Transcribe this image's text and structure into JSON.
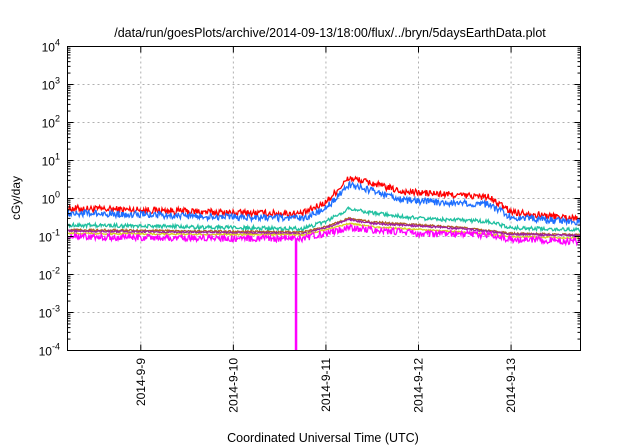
{
  "chart_data": {
    "type": "line",
    "title": "/data/run/goesPlots/archive/2014-09-13/18:00/flux/../bryn/5daysEarthData.plot",
    "xlabel": "Coordinated Universal Time (UTC)",
    "ylabel": "cGy/day",
    "yscale": "log",
    "ylim": [
      0.0001,
      10000
    ],
    "yticks": [
      {
        "value": 0.0001,
        "base": "10",
        "exp": "-4"
      },
      {
        "value": 0.001,
        "base": "10",
        "exp": "-3"
      },
      {
        "value": 0.01,
        "base": "10",
        "exp": "-2"
      },
      {
        "value": 0.1,
        "base": "10",
        "exp": "-1"
      },
      {
        "value": 1,
        "base": "10",
        "exp": "0"
      },
      {
        "value": 10,
        "base": "10",
        "exp": "1"
      },
      {
        "value": 100,
        "base": "10",
        "exp": "2"
      },
      {
        "value": 1000,
        "base": "10",
        "exp": "3"
      },
      {
        "value": 10000,
        "base": "10",
        "exp": "4"
      }
    ],
    "xlim": [
      "2014-09-08 05:00",
      "2014-09-13 18:00"
    ],
    "xticks": [
      {
        "value": "2014-09-09 00:00",
        "label": "2014-9-9"
      },
      {
        "value": "2014-09-10 00:00",
        "label": "2014-9-10"
      },
      {
        "value": "2014-09-11 00:00",
        "label": "2014-9-11"
      },
      {
        "value": "2014-09-12 00:00",
        "label": "2014-9-12"
      },
      {
        "value": "2014-09-13 00:00",
        "label": "2014-9-13"
      }
    ],
    "grid": true,
    "legend": "none",
    "series": [
      {
        "color": "#ff0000",
        "noise": 0.09,
        "points": [
          [
            "2014-09-08 05:00",
            0.55
          ],
          [
            "2014-09-09 00:00",
            0.5
          ],
          [
            "2014-09-10 00:00",
            0.42
          ],
          [
            "2014-09-10 18:00",
            0.4
          ],
          [
            "2014-09-11 00:00",
            0.8
          ],
          [
            "2014-09-11 06:00",
            3.5
          ],
          [
            "2014-09-11 12:00",
            2.5
          ],
          [
            "2014-09-11 20:00",
            1.5
          ],
          [
            "2014-09-12 06:00",
            1.3
          ],
          [
            "2014-09-12 18:00",
            1.1
          ],
          [
            "2014-09-13 00:00",
            0.45
          ],
          [
            "2014-09-13 12:00",
            0.33
          ],
          [
            "2014-09-13 18:00",
            0.3
          ]
        ]
      },
      {
        "color": "#1e6fff",
        "noise": 0.09,
        "points": [
          [
            "2014-09-08 05:00",
            0.42
          ],
          [
            "2014-09-09 00:00",
            0.38
          ],
          [
            "2014-09-10 00:00",
            0.32
          ],
          [
            "2014-09-10 18:00",
            0.3
          ],
          [
            "2014-09-11 00:00",
            0.55
          ],
          [
            "2014-09-11 06:00",
            2.3
          ],
          [
            "2014-09-11 12:00",
            1.6
          ],
          [
            "2014-09-11 20:00",
            0.9
          ],
          [
            "2014-09-12 06:00",
            0.8
          ],
          [
            "2014-09-12 18:00",
            0.7
          ],
          [
            "2014-09-13 00:00",
            0.33
          ],
          [
            "2014-09-13 12:00",
            0.26
          ],
          [
            "2014-09-13 18:00",
            0.24
          ]
        ]
      },
      {
        "color": "#20c0a0",
        "noise": 0.05,
        "points": [
          [
            "2014-09-08 05:00",
            0.2
          ],
          [
            "2014-09-09 00:00",
            0.19
          ],
          [
            "2014-09-10 00:00",
            0.17
          ],
          [
            "2014-09-10 18:00",
            0.16
          ],
          [
            "2014-09-11 00:00",
            0.25
          ],
          [
            "2014-09-11 06:00",
            0.55
          ],
          [
            "2014-09-11 12:00",
            0.42
          ],
          [
            "2014-09-12 00:00",
            0.3
          ],
          [
            "2014-09-12 18:00",
            0.25
          ],
          [
            "2014-09-13 00:00",
            0.17
          ],
          [
            "2014-09-13 18:00",
            0.15
          ]
        ]
      },
      {
        "color": "#b06020",
        "noise": 0.025,
        "points": [
          [
            "2014-09-08 05:00",
            0.15
          ],
          [
            "2014-09-10 18:00",
            0.13
          ],
          [
            "2014-09-11 00:00",
            0.18
          ],
          [
            "2014-09-11 06:00",
            0.3
          ],
          [
            "2014-09-11 12:00",
            0.24
          ],
          [
            "2014-09-12 12:00",
            0.17
          ],
          [
            "2014-09-13 00:00",
            0.12
          ],
          [
            "2014-09-13 18:00",
            0.11
          ]
        ]
      },
      {
        "color": "#a020a0",
        "noise": 0.025,
        "points": [
          [
            "2014-09-08 05:00",
            0.14
          ],
          [
            "2014-09-10 18:00",
            0.12
          ],
          [
            "2014-09-11 00:00",
            0.17
          ],
          [
            "2014-09-11 06:00",
            0.28
          ],
          [
            "2014-09-11 12:00",
            0.22
          ],
          [
            "2014-09-12 12:00",
            0.16
          ],
          [
            "2014-09-13 00:00",
            0.115
          ],
          [
            "2014-09-13 18:00",
            0.105
          ]
        ]
      },
      {
        "color": "#d8d020",
        "noise": 0.02,
        "points": [
          [
            "2014-09-08 05:00",
            0.12
          ],
          [
            "2014-09-10 18:00",
            0.11
          ],
          [
            "2014-09-11 00:00",
            0.15
          ],
          [
            "2014-09-11 06:00",
            0.22
          ],
          [
            "2014-09-11 12:00",
            0.18
          ],
          [
            "2014-09-12 12:00",
            0.13
          ],
          [
            "2014-09-13 00:00",
            0.1
          ],
          [
            "2014-09-13 18:00",
            0.09
          ]
        ]
      },
      {
        "color": "#ff00ff",
        "noise": 0.09,
        "points": [
          [
            "2014-09-08 05:00",
            0.1
          ],
          [
            "2014-09-09 00:00",
            0.095
          ],
          [
            "2014-09-10 00:00",
            0.09
          ],
          [
            "2014-09-10 18:00",
            0.088
          ],
          [
            "2014-09-11 00:00",
            0.12
          ],
          [
            "2014-09-11 06:00",
            0.17
          ],
          [
            "2014-09-11 12:00",
            0.15
          ],
          [
            "2014-09-12 00:00",
            0.12
          ],
          [
            "2014-09-12 18:00",
            0.11
          ],
          [
            "2014-09-13 00:00",
            0.085
          ],
          [
            "2014-09-13 18:00",
            0.075
          ]
        ],
        "dropout": {
          "time": "2014-09-10 16:15",
          "min": 0.0001
        }
      }
    ]
  }
}
